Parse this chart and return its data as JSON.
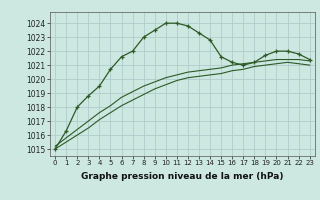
{
  "title": "Graphe pression niveau de la mer (hPa)",
  "background_color": "#cce8e0",
  "plot_bg_color": "#cce8e0",
  "grid_color": "#b0cccc",
  "line_color": "#2d5a27",
  "xlim": [
    -0.5,
    23.5
  ],
  "ylim": [
    1014.5,
    1024.8
  ],
  "xticks": [
    0,
    1,
    2,
    3,
    4,
    5,
    6,
    7,
    8,
    9,
    10,
    11,
    12,
    13,
    14,
    15,
    16,
    17,
    18,
    19,
    20,
    21,
    22,
    23
  ],
  "yticks": [
    1015,
    1016,
    1017,
    1018,
    1019,
    1020,
    1021,
    1022,
    1023,
    1024
  ],
  "series1_x": [
    0,
    1,
    2,
    3,
    4,
    5,
    6,
    7,
    8,
    9,
    10,
    11,
    12,
    13,
    14,
    15,
    16,
    17,
    18,
    19,
    20,
    21,
    22,
    23
  ],
  "series1_y": [
    1015.0,
    1016.3,
    1018.0,
    1018.8,
    1019.5,
    1020.7,
    1021.6,
    1022.0,
    1023.0,
    1023.5,
    1024.0,
    1024.0,
    1023.8,
    1023.3,
    1022.8,
    1021.6,
    1021.2,
    1021.0,
    1021.2,
    1021.7,
    1022.0,
    1022.0,
    1021.8,
    1021.4
  ],
  "series2_x": [
    0,
    1,
    2,
    3,
    4,
    5,
    6,
    7,
    8,
    9,
    10,
    11,
    12,
    13,
    14,
    15,
    16,
    17,
    18,
    19,
    20,
    21,
    22,
    23
  ],
  "series2_y": [
    1015.2,
    1015.8,
    1016.4,
    1017.0,
    1017.6,
    1018.1,
    1018.7,
    1019.1,
    1019.5,
    1019.8,
    1020.1,
    1020.3,
    1020.5,
    1020.6,
    1020.7,
    1020.8,
    1021.0,
    1021.1,
    1021.2,
    1021.3,
    1021.4,
    1021.4,
    1021.4,
    1021.3
  ],
  "series3_x": [
    0,
    1,
    2,
    3,
    4,
    5,
    6,
    7,
    8,
    9,
    10,
    11,
    12,
    13,
    14,
    15,
    16,
    17,
    18,
    19,
    20,
    21,
    22,
    23
  ],
  "series3_y": [
    1015.0,
    1015.5,
    1016.0,
    1016.5,
    1017.1,
    1017.6,
    1018.1,
    1018.5,
    1018.9,
    1019.3,
    1019.6,
    1019.9,
    1020.1,
    1020.2,
    1020.3,
    1020.4,
    1020.6,
    1020.7,
    1020.9,
    1021.0,
    1021.1,
    1021.2,
    1021.1,
    1021.0
  ],
  "ylabel_fontsize": 5.5,
  "xlabel_fontsize": 6.5,
  "tick_fontsize": 5.0
}
